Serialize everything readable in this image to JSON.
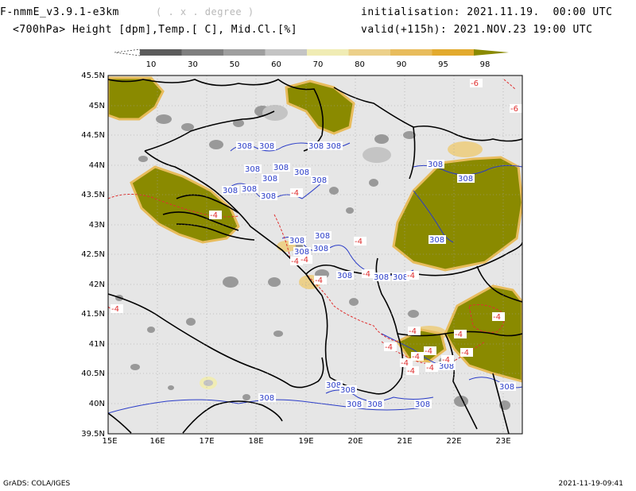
{
  "header": {
    "model_title": "F-nmmE_v3.9.1-e3km",
    "model_title_suffix": "( . x . degree )",
    "subtitle": "<700hPa> Height [dpm],Temp.[ C], Mid.Cl.[%]",
    "initialisation": "initialisation: 2021.11.19.  00:00 UTC",
    "valid": "valid(+115h): 2021.NOV.23 19:00 UTC"
  },
  "colorbar": {
    "labels": [
      "10",
      "30",
      "50",
      "60",
      "70",
      "80",
      "90",
      "95",
      "98"
    ],
    "colors": [
      "#ffffff",
      "#5c5c5c",
      "#7f7f7f",
      "#9f9f9f",
      "#c4c4c4",
      "#f0ecb4",
      "#ecd08a",
      "#e8bc5c",
      "#e2aa2e",
      "#8a8a00"
    ]
  },
  "map": {
    "lat_labels": [
      "45.5N",
      "45N",
      "44.5N",
      "44N",
      "43.5N",
      "43N",
      "42.5N",
      "42N",
      "41.5N",
      "41N",
      "40.5N",
      "40N",
      "39.5N"
    ],
    "lon_labels": [
      "15E",
      "16E",
      "17E",
      "18E",
      "19E",
      "20E",
      "21E",
      "22E",
      "23E"
    ],
    "height_contour_label": "308",
    "temp_contour_label": "-4",
    "temp_label_far": "-6",
    "colors": {
      "background": "#e6e6e6",
      "high_cloud": "#8a8a00",
      "height_contour": "#2a3cc8",
      "temp_contour": "#e03030",
      "coast": "#000000"
    }
  },
  "footer": {
    "left": "GrADS: COLA/IGES",
    "right": "2021-11-19-09:41"
  }
}
